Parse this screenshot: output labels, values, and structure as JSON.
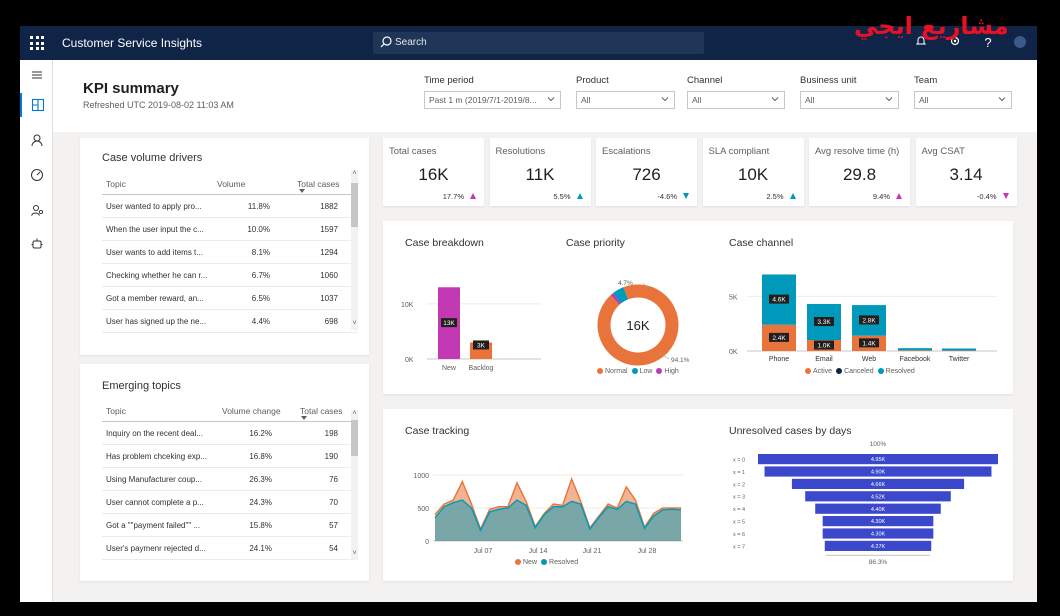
{
  "app": {
    "title": "Customer Service Insights",
    "search_placeholder": "Search"
  },
  "header": {
    "title": "KPI summary",
    "refreshed": "Refreshed UTC 2019-08-02 11:03 AM"
  },
  "filters": [
    {
      "label": "Time period",
      "value": "Past 1 m (2019/7/1-2019/8..."
    },
    {
      "label": "Product",
      "value": "All"
    },
    {
      "label": "Channel",
      "value": "All"
    },
    {
      "label": "Business unit",
      "value": "All"
    },
    {
      "label": "Team",
      "value": "All"
    }
  ],
  "case_volume_drivers": {
    "title": "Case volume drivers",
    "columns": [
      "Topic",
      "Volume",
      "Total cases"
    ],
    "rows": [
      [
        "User wanted to apply pro...",
        "11.8%",
        "1882"
      ],
      [
        "When the user input the c...",
        "10.0%",
        "1597"
      ],
      [
        "User wants to add items t...",
        "8.1%",
        "1294"
      ],
      [
        "Checking whether he can r...",
        "6.7%",
        "1060"
      ],
      [
        "Got a member reward, an...",
        "6.5%",
        "1037"
      ],
      [
        "User has signed up the ne...",
        "4.4%",
        "698"
      ]
    ]
  },
  "emerging_topics": {
    "title": "Emerging topics",
    "columns": [
      "Topic",
      "Volume change",
      "Total cases"
    ],
    "rows": [
      [
        "Inquiry on the recent deal...",
        "16.2%",
        "198"
      ],
      [
        "Has problem chceking exp...",
        "16.8%",
        "190"
      ],
      [
        "Using Manufacturer coup...",
        "26.3%",
        "76"
      ],
      [
        "User cannot complete a p...",
        "24.3%",
        "70"
      ],
      [
        "Got a \"\"payment failed\"\" ...",
        "15.8%",
        "57"
      ],
      [
        "User's paymenr rejected d...",
        "24.1%",
        "54"
      ]
    ]
  },
  "kpis": [
    {
      "label": "Total cases",
      "value": "16K",
      "delta": "17.7%",
      "direction": "up",
      "color": "#c239b3"
    },
    {
      "label": "Resolutions",
      "value": "11K",
      "delta": "5.5%",
      "direction": "up",
      "color": "#0099bc"
    },
    {
      "label": "Escalations",
      "value": "726",
      "delta": "-4.6%",
      "direction": "down",
      "color": "#0099bc"
    },
    {
      "label": "SLA compliant",
      "value": "10K",
      "delta": "2.5%",
      "direction": "up",
      "color": "#0099bc"
    },
    {
      "label": "Avg resolve time (h)",
      "value": "29.8",
      "delta": "9.4%",
      "direction": "up",
      "color": "#c239b3"
    },
    {
      "label": "Avg CSAT",
      "value": "3.14",
      "delta": "-0.4%",
      "direction": "down",
      "color": "#c239b3"
    }
  ],
  "chart_data": [
    {
      "type": "bar",
      "title": "Case breakdown",
      "categories": [
        "New",
        "Backlog"
      ],
      "values": [
        13000,
        3000
      ],
      "data_labels": [
        "13K",
        "3K"
      ],
      "colors": [
        "#c239b3",
        "#e8743b"
      ],
      "yticks": [
        "10K",
        "0K"
      ],
      "ylim": [
        0,
        14500
      ]
    },
    {
      "type": "pie",
      "title": "Case priority",
      "center_label": "16K",
      "slices": [
        {
          "name": "Normal",
          "value": 94.1,
          "color": "#e8743b"
        },
        {
          "name": "Low",
          "value": 4.7,
          "color": "#0099bc"
        },
        {
          "name": "High",
          "value": 1.2,
          "color": "#c239b3"
        }
      ],
      "data_labels": [
        "4.7%",
        "94.1%"
      ]
    },
    {
      "type": "bar",
      "title": "Case channel",
      "categories": [
        "Phone",
        "Email",
        "Web",
        "Facebook",
        "Twitter"
      ],
      "series": [
        {
          "name": "Active",
          "color": "#e8743b",
          "values": [
            2400,
            1000,
            1400,
            60,
            50
          ]
        },
        {
          "name": "Canceled",
          "color": "#0f2447",
          "values": [
            0,
            0,
            0,
            0,
            0
          ]
        },
        {
          "name": "Resolved",
          "color": "#0099bc",
          "values": [
            4600,
            3300,
            2800,
            200,
            180
          ]
        }
      ],
      "data_labels": {
        "Phone": [
          "4.6K",
          "2.4K"
        ],
        "Email": [
          "3.3K",
          "1.0K"
        ],
        "Web": [
          "2.8K",
          "1.4K"
        ]
      },
      "yticks": [
        "5K",
        "0K"
      ],
      "ylim": [
        0,
        7500
      ]
    },
    {
      "type": "area",
      "title": "Case tracking",
      "x_ticks": [
        "Jul 07",
        "Jul 14",
        "Jul 21",
        "Jul 28"
      ],
      "yticks": [
        "1000",
        "500",
        "0"
      ],
      "ylim": [
        0,
        1000
      ],
      "series": [
        {
          "name": "New",
          "color": "#e8743b",
          "values": [
            400,
            560,
            620,
            900,
            560,
            180,
            480,
            520,
            520,
            880,
            600,
            220,
            420,
            560,
            540,
            940,
            600,
            200,
            380,
            560,
            500,
            820,
            620,
            210,
            420,
            500,
            500,
            500
          ]
        },
        {
          "name": "Resolved",
          "color": "#0099bc",
          "values": [
            350,
            520,
            580,
            620,
            500,
            160,
            440,
            480,
            500,
            620,
            540,
            200,
            400,
            520,
            520,
            600,
            560,
            180,
            360,
            520,
            480,
            600,
            560,
            190,
            380,
            470,
            480,
            470
          ]
        }
      ]
    },
    {
      "type": "bar",
      "title": "Unresolved cases by days",
      "categories": [
        "x = 0",
        "x = 1",
        "x = 2",
        "x = 3",
        "x = 4",
        "x = 5",
        "x = 6",
        "x = 7"
      ],
      "values": [
        4950,
        4900,
        4660,
        4520,
        4400,
        4300,
        4300,
        4270
      ],
      "data_labels": [
        "4.95K",
        "4.90K",
        "4.66K",
        "4.52K",
        "4.40K",
        "4.30K",
        "4.30K",
        "4.27K"
      ],
      "top_label": "100%",
      "bottom_label": "86.3%",
      "color": "#3b48cc"
    }
  ]
}
